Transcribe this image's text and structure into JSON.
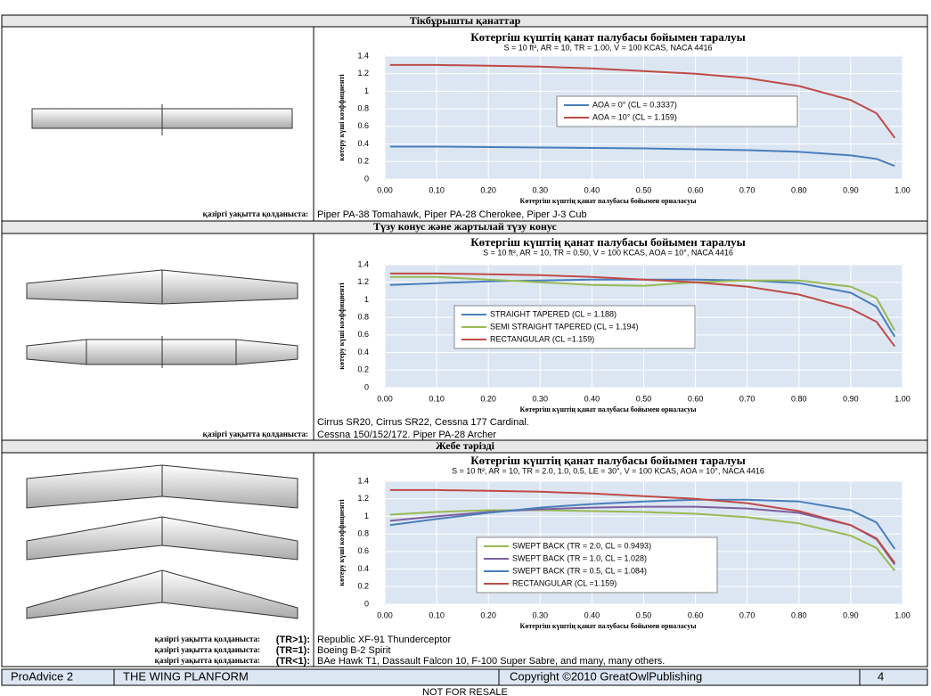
{
  "sections": [
    {
      "title": "Тікбұрышты қанаттар",
      "chart": {
        "type": "line",
        "title": "Көтергіш күштің қанат палубасы бойымен таралуы",
        "subtitle": "S = 10 ft², AR = 10, TR = 1.00, V = 100 KCAS, NACA 4416",
        "y_label": "көтеру күші коэффициенті",
        "x_label": "Көтергіш күштің қанат палубасы бойымен орналасуы",
        "x": [
          0.01,
          0.1,
          0.2,
          0.3,
          0.4,
          0.5,
          0.6,
          0.7,
          0.8,
          0.9,
          0.95,
          0.985
        ],
        "series": [
          {
            "name": "AOA = 0° (CL = 0.3337)",
            "color": "#4a7ebb",
            "values": [
              0.37,
              0.37,
              0.365,
              0.36,
              0.355,
              0.35,
              0.34,
              0.33,
              0.31,
              0.27,
              0.23,
              0.15
            ]
          },
          {
            "name": "AOA = 10° (CL = 1.159)",
            "color": "#be4b48",
            "values": [
              1.3,
              1.3,
              1.29,
              1.28,
              1.26,
              1.23,
              1.2,
              1.15,
              1.06,
              0.9,
              0.75,
              0.47
            ]
          }
        ],
        "xlim": [
          0,
          1
        ],
        "ylim": [
          0,
          1.4
        ],
        "xticks": [
          {
            "value": 0,
            "label": "0.00"
          },
          {
            "value": 0.1,
            "label": "0.10"
          },
          {
            "value": 0.2,
            "label": "0.20"
          },
          {
            "value": 0.3,
            "label": "0.30"
          },
          {
            "value": 0.4,
            "label": "0.40"
          },
          {
            "value": 0.5,
            "label": "0.50"
          },
          {
            "value": 0.6,
            "label": "0.60"
          },
          {
            "value": 0.7,
            "label": "0.70"
          },
          {
            "value": 0.8,
            "label": "0.80"
          },
          {
            "value": 0.9,
            "label": "0.90"
          },
          {
            "value": 1,
            "label": "1.00"
          }
        ],
        "yticks": [
          0,
          0.2,
          0.4,
          0.6,
          0.8,
          1,
          1.2,
          1.4
        ],
        "grid": true
      },
      "usage": [
        {
          "label": "қазіргі уақытта қолданыста:",
          "text": "Piper PA-38 Tomahawk, Piper PA-28 Cherokee, Piper J-3 Cub"
        }
      ]
    },
    {
      "title": "Түзу конус және жартылай түзу конус",
      "chart": {
        "type": "line",
        "title": "Көтергіш күштің қанат палубасы бойымен таралуы",
        "subtitle": "S = 10 ft², AR = 10, TR = 0.50, V = 100 KCAS, AOA = 10°, NACA 4416",
        "y_label": "көтеру күші коэффициенті",
        "x_label": "Көтергіш күштің қанат палубасы бойымен орналасуы",
        "x": [
          0.01,
          0.1,
          0.2,
          0.3,
          0.4,
          0.5,
          0.6,
          0.7,
          0.8,
          0.9,
          0.95,
          0.985
        ],
        "series": [
          {
            "name": "STRAIGHT TAPERED  (CL = 1.188)",
            "color": "#4a7ebb",
            "values": [
              1.17,
              1.19,
              1.21,
              1.22,
              1.23,
              1.23,
              1.23,
              1.22,
              1.19,
              1.08,
              0.92,
              0.58
            ]
          },
          {
            "name": "SEMI STRAIGHT TAPERED  (CL = 1.194)",
            "color": "#98b954",
            "values": [
              1.26,
              1.26,
              1.23,
              1.2,
              1.17,
              1.16,
              1.2,
              1.22,
              1.22,
              1.15,
              1.02,
              0.65
            ]
          },
          {
            "name": "RECTANGULAR  (CL =1.159)",
            "color": "#be4b48",
            "values": [
              1.3,
              1.3,
              1.29,
              1.28,
              1.26,
              1.23,
              1.2,
              1.15,
              1.06,
              0.9,
              0.75,
              0.47
            ]
          }
        ],
        "xlim": [
          0,
          1
        ],
        "ylim": [
          0,
          1.4
        ],
        "xticks": [
          {
            "value": 0,
            "label": "0.00"
          },
          {
            "value": 0.1,
            "label": "0.10"
          },
          {
            "value": 0.2,
            "label": "0.20"
          },
          {
            "value": 0.3,
            "label": "0.30"
          },
          {
            "value": 0.4,
            "label": "0.40"
          },
          {
            "value": 0.5,
            "label": "0.50"
          },
          {
            "value": 0.6,
            "label": "0.60"
          },
          {
            "value": 0.7,
            "label": "0.70"
          },
          {
            "value": 0.8,
            "label": "0.80"
          },
          {
            "value": 0.9,
            "label": "0.90"
          },
          {
            "value": 1,
            "label": "1.00"
          }
        ],
        "yticks": [
          0,
          0.2,
          0.4,
          0.6,
          0.8,
          1,
          1.2,
          1.4
        ],
        "grid": true
      },
      "usage": [
        {
          "text": "Cirrus SR20, Cirrus SR22, Cessna 177 Cardinal."
        },
        {
          "label": "қазіргі уақытта қолданыста:",
          "text": "Cessna 150/152/172. Piper PA-28 Archer"
        }
      ]
    },
    {
      "title": "Жебе тәрізді",
      "chart": {
        "type": "line",
        "title": "Көтергіш күштің қанат палубасы бойымен таралуы",
        "subtitle": "S = 10 ft², AR = 10, TR = 2.0, 1.0, 0.5, LE = 30°, V = 100 KCAS, AOA = 10°, NACA 4416",
        "y_label": "көтеру күші коэффициенті",
        "x_label": "Көтергіш күштің қанат палубасы бойымен орналасуы",
        "x": [
          0.01,
          0.1,
          0.2,
          0.3,
          0.4,
          0.5,
          0.6,
          0.7,
          0.8,
          0.9,
          0.95,
          0.985
        ],
        "series": [
          {
            "name": "SWEPT BACK (TR = 2.0, CL = 0.9493)",
            "color": "#98b954",
            "values": [
              1.02,
              1.05,
              1.07,
              1.07,
              1.06,
              1.05,
              1.03,
              0.99,
              0.92,
              0.78,
              0.64,
              0.38
            ]
          },
          {
            "name": "SWEPT BACK (TR = 1.0, CL = 1.028)",
            "color": "#7d60a0",
            "values": [
              0.95,
              1.0,
              1.05,
              1.08,
              1.1,
              1.11,
              1.11,
              1.09,
              1.04,
              0.9,
              0.74,
              0.45
            ]
          },
          {
            "name": "SWEPT BACK (TR = 0.5, CL = 1.084)",
            "color": "#4a7ebb",
            "values": [
              0.9,
              0.97,
              1.04,
              1.1,
              1.14,
              1.17,
              1.19,
              1.19,
              1.17,
              1.07,
              0.93,
              0.63
            ]
          },
          {
            "name": "RECTANGULAR (CL =1.159)",
            "color": "#be4b48",
            "values": [
              1.3,
              1.3,
              1.29,
              1.28,
              1.26,
              1.23,
              1.2,
              1.15,
              1.06,
              0.9,
              0.75,
              0.47
            ]
          }
        ],
        "xlim": [
          0,
          1
        ],
        "ylim": [
          0,
          1.4
        ],
        "xticks": [
          {
            "value": 0,
            "label": "0.00"
          },
          {
            "value": 0.1,
            "label": "0.10"
          },
          {
            "value": 0.2,
            "label": "0.20"
          },
          {
            "value": 0.3,
            "label": "0.30"
          },
          {
            "value": 0.4,
            "label": "0.40"
          },
          {
            "value": 0.5,
            "label": "0.50"
          },
          {
            "value": 0.6,
            "label": "0.60"
          },
          {
            "value": 0.7,
            "label": "0.70"
          },
          {
            "value": 0.8,
            "label": "0.80"
          },
          {
            "value": 0.9,
            "label": "0.90"
          },
          {
            "value": 1,
            "label": "1.00"
          }
        ],
        "yticks": [
          0,
          0.2,
          0.4,
          0.6,
          0.8,
          1,
          1.2,
          1.4
        ],
        "grid": true
      },
      "usage": [
        {
          "label": "қазіргі уақытта қолданыста:",
          "tr": "(TR>1):",
          "text": "Republic XF-91 Thunderceptor"
        },
        {
          "label": "қазіргі уақытта қолданыста:",
          "tr": "(TR=1):",
          "text": "Boeing B-2 Spirit"
        },
        {
          "label": "қазіргі уақытта қолданыста:",
          "tr": "(TR<1):",
          "text": "BAe Hawk T1, Dassault Falcon 10, F-100 Super Sabre, and many, many others."
        }
      ]
    }
  ],
  "footer": {
    "cells": [
      "ProAdvice 2",
      "THE WING PLANFORM",
      "Copyright ©2010 GreatOwlPublishing",
      "4"
    ],
    "note": "NOT FOR RESALE"
  }
}
